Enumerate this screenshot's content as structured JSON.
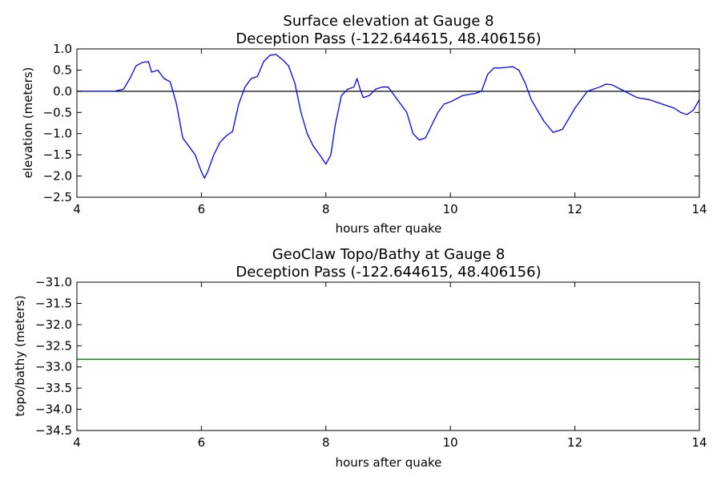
{
  "colors": {
    "background": "#ffffff",
    "axes": "#000000",
    "elevation_series": "#0000ff",
    "topo_series": "#008000",
    "zero_line": "#000000"
  },
  "chart_data": [
    {
      "type": "line",
      "title": "Surface elevation at Gauge 8",
      "subtitle": "Deception Pass  (-122.644615, 48.406156)",
      "xlabel": "hours after quake",
      "ylabel": "elevation (meters)",
      "xlim": [
        4,
        14
      ],
      "ylim": [
        -2.5,
        1.0
      ],
      "xticks": [
        4,
        6,
        8,
        10,
        12,
        14
      ],
      "yticks": [
        1.0,
        0.5,
        0.0,
        -0.5,
        -1.0,
        -1.5,
        -2.0,
        -2.5
      ],
      "ytick_labels": [
        "1.0",
        "0.5",
        "0.0",
        "−0.5",
        "−1.0",
        "−1.5",
        "−2.0",
        "−2.5"
      ],
      "grid": false,
      "reference_line_y": 0.0,
      "series": [
        {
          "x": [
            4.0,
            4.3,
            4.6,
            4.75,
            4.85,
            4.95,
            5.05,
            5.15,
            5.2,
            5.3,
            5.4,
            5.5,
            5.6,
            5.7,
            5.8,
            5.9,
            6.0,
            6.05,
            6.1,
            6.2,
            6.3,
            6.4,
            6.5,
            6.6,
            6.7,
            6.8,
            6.9,
            7.0,
            7.1,
            7.2,
            7.3,
            7.4,
            7.5,
            7.6,
            7.7,
            7.8,
            7.9,
            8.0,
            8.08,
            8.15,
            8.25,
            8.35,
            8.45,
            8.5,
            8.55,
            8.6,
            8.7,
            8.8,
            8.9,
            9.0,
            9.1,
            9.2,
            9.3,
            9.4,
            9.5,
            9.6,
            9.7,
            9.8,
            9.9,
            10.0,
            10.2,
            10.4,
            10.5,
            10.6,
            10.7,
            10.8,
            11.0,
            11.1,
            11.2,
            11.3,
            11.5,
            11.65,
            11.8,
            12.0,
            12.2,
            12.4,
            12.5,
            12.6,
            12.8,
            13.0,
            13.2,
            13.4,
            13.5,
            13.6,
            13.7,
            13.8,
            13.9,
            14.0
          ],
          "values": [
            0.0,
            0.0,
            0.0,
            0.05,
            0.3,
            0.6,
            0.68,
            0.7,
            0.45,
            0.5,
            0.3,
            0.22,
            -0.3,
            -1.1,
            -1.3,
            -1.5,
            -1.9,
            -2.05,
            -1.9,
            -1.5,
            -1.2,
            -1.05,
            -0.95,
            -0.3,
            0.1,
            0.3,
            0.35,
            0.7,
            0.85,
            0.87,
            0.75,
            0.6,
            0.2,
            -0.5,
            -1.0,
            -1.3,
            -1.5,
            -1.72,
            -1.5,
            -0.8,
            -0.1,
            0.05,
            0.1,
            0.3,
            0.05,
            -0.15,
            -0.1,
            0.05,
            0.1,
            0.1,
            -0.1,
            -0.3,
            -0.5,
            -1.0,
            -1.15,
            -1.1,
            -0.8,
            -0.5,
            -0.3,
            -0.25,
            -0.1,
            -0.05,
            0.0,
            0.4,
            0.55,
            0.55,
            0.58,
            0.5,
            0.2,
            -0.2,
            -0.7,
            -0.97,
            -0.9,
            -0.4,
            0.0,
            0.1,
            0.17,
            0.15,
            0.0,
            -0.15,
            -0.2,
            -0.3,
            -0.35,
            -0.4,
            -0.5,
            -0.55,
            -0.45,
            -0.2
          ]
        }
      ]
    },
    {
      "type": "line",
      "title": "GeoClaw Topo/Bathy at Gauge 8",
      "subtitle": "Deception Pass  (-122.644615, 48.406156)",
      "xlabel": "hours after quake",
      "ylabel": "topo/bathy (meters)",
      "xlim": [
        4,
        14
      ],
      "ylim": [
        -34.5,
        -31.0
      ],
      "xticks": [
        4,
        6,
        8,
        10,
        12,
        14
      ],
      "yticks": [
        -31.0,
        -31.5,
        -32.0,
        -32.5,
        -33.0,
        -33.5,
        -34.0,
        -34.5
      ],
      "ytick_labels": [
        "−31.0",
        "−31.5",
        "−32.0",
        "−32.5",
        "−33.0",
        "−33.5",
        "−34.0",
        "−34.5"
      ],
      "grid": false,
      "series": [
        {
          "x": [
            4.0,
            14.0
          ],
          "values": [
            -32.82,
            -32.82
          ]
        }
      ]
    }
  ]
}
